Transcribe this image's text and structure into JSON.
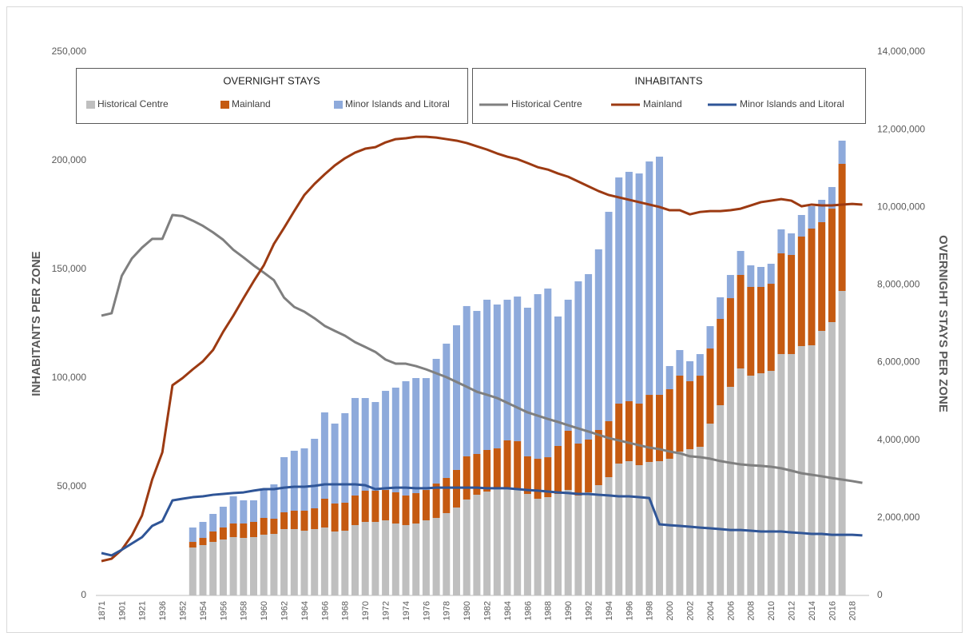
{
  "chart_data": {
    "type": "combo",
    "y_label": "INHABITANTS PER ZONE",
    "y2_label": "OVERNIGHT STAYS PER ZONE",
    "legend": {
      "bar_title": "OVERNIGHT STAYS",
      "line_title": "INHABITANTS"
    },
    "ylim": [
      0,
      250000
    ],
    "yticks": [
      0,
      {
        "value": 50000,
        "label": "50,000"
      },
      {
        "value": 100000,
        "label": "100,000"
      },
      {
        "value": 150000,
        "label": "150,000"
      },
      {
        "value": 200000,
        "label": "200,000"
      },
      {
        "value": 250000,
        "label": "250,000"
      }
    ],
    "y2lim": [
      0,
      14000000
    ],
    "y2ticks": [
      0,
      {
        "value": 2000000,
        "label": "2,000,000"
      },
      {
        "value": 4000000,
        "label": "4,000,000"
      },
      {
        "value": 6000000,
        "label": "6,000,000"
      },
      {
        "value": 8000000,
        "label": "8,000,000"
      },
      {
        "value": 10000000,
        "label": "10,000,000"
      },
      {
        "value": 12000000,
        "label": "12,000,000"
      },
      {
        "value": 14000000,
        "label": "14,000,000"
      }
    ],
    "grid": false,
    "categories": [
      "1871",
      null,
      "1901",
      null,
      "1921",
      null,
      "1936",
      null,
      "1952",
      null,
      "1954",
      null,
      "1956",
      null,
      "1958",
      null,
      "1960",
      null,
      "1962",
      null,
      "1964",
      null,
      "1966",
      null,
      "1968",
      null,
      "1970",
      null,
      "1972",
      null,
      "1974",
      null,
      "1976",
      null,
      "1978",
      null,
      "1980",
      null,
      "1982",
      null,
      "1984",
      null,
      "1986",
      null,
      "1988",
      null,
      "1990",
      null,
      "1992",
      null,
      "1994",
      null,
      "1996",
      null,
      "1998",
      null,
      "2000",
      null,
      "2002",
      null,
      "2004",
      null,
      "2006",
      null,
      "2008",
      null,
      "2010",
      null,
      "2012",
      null,
      "2014",
      null,
      "2016",
      null,
      "2018",
      null
    ],
    "series": [
      {
        "name": "Historical Centre",
        "type": "bar",
        "axis": "y2",
        "color": "#bfbfbf",
        "values": [
          null,
          null,
          null,
          null,
          null,
          null,
          null,
          null,
          null,
          1235000,
          1297000,
          1379000,
          1441000,
          1503000,
          1482000,
          1503000,
          1565000,
          1585000,
          1709000,
          1709000,
          1668000,
          1709000,
          1750000,
          1647000,
          1668000,
          1812000,
          1894000,
          1894000,
          1935000,
          1853000,
          1812000,
          1853000,
          1935000,
          1997000,
          2121000,
          2265000,
          2471000,
          2594000,
          2676000,
          2738000,
          2779000,
          2738000,
          2615000,
          2491000,
          2532000,
          2615000,
          2718000,
          2574000,
          2656000,
          2841000,
          3047000,
          3397000,
          3459000,
          3356000,
          3438000,
          3459000,
          3521000,
          3706000,
          3768000,
          3829000,
          4426000,
          4900000,
          5373000,
          5847000,
          5662000,
          5723000,
          5785000,
          6218000,
          6218000,
          6423000,
          6444000,
          6815000,
          7041000,
          7844000,
          null,
          null
        ]
      },
      {
        "name": "Mainland",
        "type": "bar",
        "axis": "y2",
        "color": "#c55a11",
        "values": [
          null,
          null,
          null,
          null,
          null,
          null,
          null,
          null,
          null,
          144000,
          185000,
          268000,
          309000,
          350000,
          371000,
          391000,
          432000,
          391000,
          432000,
          474000,
          515000,
          535000,
          741000,
          721000,
          721000,
          762000,
          803000,
          803000,
          782000,
          803000,
          762000,
          782000,
          782000,
          885000,
          906000,
          968000,
          1112000,
          1050000,
          1071000,
          1050000,
          1215000,
          1235000,
          968000,
          1029000,
          1029000,
          1235000,
          1524000,
          1338000,
          1359000,
          1421000,
          1441000,
          1544000,
          1544000,
          1585000,
          1729000,
          1709000,
          1791000,
          1956000,
          1750000,
          1832000,
          1935000,
          2224000,
          2285000,
          2409000,
          2285000,
          2224000,
          2244000,
          2594000,
          2553000,
          2821000,
          3006000,
          2800000,
          2923000,
          3274000,
          null,
          null
        ]
      },
      {
        "name": "Minor Islands and Litoral",
        "type": "bar",
        "axis": "y2",
        "color": "#8eaadb",
        "values": [
          null,
          null,
          null,
          null,
          null,
          null,
          null,
          null,
          null,
          371000,
          412000,
          453000,
          535000,
          700000,
          597000,
          556000,
          741000,
          885000,
          1421000,
          1544000,
          1606000,
          1791000,
          2224000,
          2059000,
          2306000,
          2512000,
          2388000,
          2285000,
          2553000,
          2697000,
          2944000,
          2965000,
          2882000,
          3212000,
          3459000,
          3726000,
          3871000,
          3685000,
          3871000,
          3706000,
          3623000,
          3726000,
          3829000,
          4241000,
          4344000,
          3335000,
          3376000,
          4179000,
          4262000,
          4653000,
          5394000,
          5826000,
          5909000,
          5929000,
          6012000,
          6135000,
          597000,
          659000,
          515000,
          556000,
          576000,
          556000,
          597000,
          618000,
          556000,
          515000,
          515000,
          618000,
          556000,
          556000,
          576000,
          576000,
          556000,
          597000,
          null,
          null
        ]
      },
      {
        "name": "Historical Centre",
        "type": "line",
        "axis": "y",
        "color": "#7f7f7f",
        "values": [
          128700,
          129800,
          147000,
          155000,
          160000,
          164000,
          164000,
          175000,
          174500,
          172400,
          170000,
          167000,
          163600,
          159000,
          155500,
          151800,
          148500,
          145000,
          137000,
          132700,
          130500,
          127500,
          124000,
          121700,
          119500,
          116500,
          114300,
          112000,
          108500,
          106600,
          106600,
          105500,
          104000,
          102200,
          100400,
          98200,
          96000,
          93700,
          92300,
          90800,
          88600,
          86400,
          84200,
          82700,
          81200,
          79800,
          78300,
          76800,
          75400,
          73900,
          72400,
          71300,
          70200,
          69100,
          68000,
          67300,
          66200,
          65400,
          64000,
          63600,
          62900,
          61800,
          61000,
          60300,
          59900,
          59600,
          59200,
          58500,
          57400,
          56200,
          55500,
          54800,
          54000,
          53300,
          52600,
          51800
        ]
      },
      {
        "name": "Mainland",
        "type": "line",
        "axis": "y",
        "color": "#9c3a12",
        "values": [
          15800,
          16900,
          21000,
          27600,
          36800,
          53300,
          65800,
          96700,
          100000,
          104000,
          107700,
          112900,
          121300,
          128700,
          136700,
          144500,
          151800,
          161700,
          169100,
          176800,
          184200,
          189300,
          193700,
          197800,
          201100,
          203700,
          205500,
          206200,
          208400,
          209900,
          210300,
          211000,
          211000,
          210600,
          209900,
          209200,
          208100,
          206600,
          205100,
          203300,
          201800,
          200700,
          198900,
          197000,
          195900,
          194100,
          192600,
          190400,
          188200,
          186000,
          184200,
          183100,
          182000,
          180900,
          179800,
          178700,
          177200,
          177200,
          175300,
          176400,
          176800,
          176800,
          177200,
          177900,
          179400,
          180900,
          181600,
          182300,
          181600,
          179000,
          179800,
          179400,
          179400,
          179800,
          180100,
          179800
        ]
      },
      {
        "name": "Minor Islands and Litoral",
        "type": "line",
        "axis": "y",
        "color": "#2f5597",
        "values": [
          19500,
          18400,
          21000,
          23900,
          26800,
          32000,
          34200,
          43700,
          44500,
          45200,
          45600,
          46300,
          46700,
          47100,
          47400,
          48200,
          48900,
          48900,
          49600,
          50000,
          50000,
          50400,
          51100,
          51100,
          51100,
          51100,
          50700,
          48900,
          49300,
          49600,
          49600,
          49300,
          49300,
          49600,
          49600,
          49600,
          49600,
          49600,
          49300,
          49300,
          49300,
          48900,
          48500,
          48200,
          47800,
          47400,
          47100,
          46700,
          46700,
          46300,
          46000,
          45600,
          45600,
          45200,
          44800,
          32700,
          32300,
          32000,
          31600,
          31200,
          30900,
          30500,
          30100,
          30100,
          29800,
          29400,
          29400,
          29400,
          29000,
          28700,
          28300,
          28300,
          27900,
          27900,
          27900,
          27600
        ]
      }
    ]
  }
}
